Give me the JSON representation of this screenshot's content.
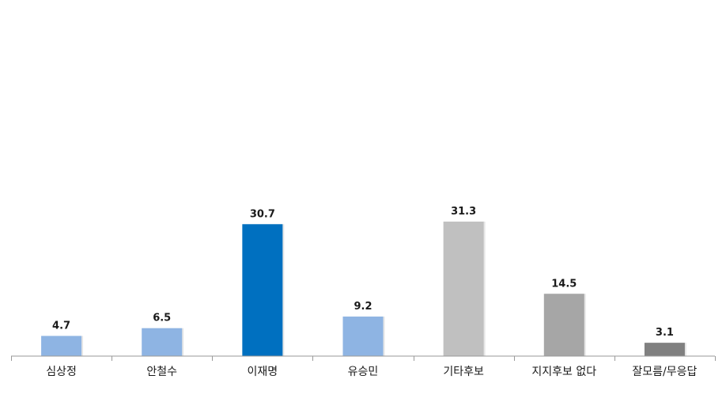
{
  "chart_data": {
    "type": "bar",
    "title": "",
    "xlabel": "",
    "ylabel": "",
    "categories": [
      "심상정",
      "안철수",
      "이재명",
      "유승민",
      "기타후보",
      "지지후보 없다",
      "잘모름/무응답"
    ],
    "values": [
      4.7,
      6.5,
      30.7,
      9.2,
      31.3,
      14.5,
      3.1
    ],
    "value_labels": [
      "4.7",
      "6.5",
      "30.7",
      "9.2",
      "31.3",
      "14.5",
      "3.1"
    ],
    "colors": [
      "#8EB4E3",
      "#8EB4E3",
      "#0070C0",
      "#8EB4E3",
      "#C0C0C0",
      "#A6A6A6",
      "#808080"
    ],
    "ylim": [
      0,
      100
    ],
    "grid": false,
    "legend": "none"
  }
}
